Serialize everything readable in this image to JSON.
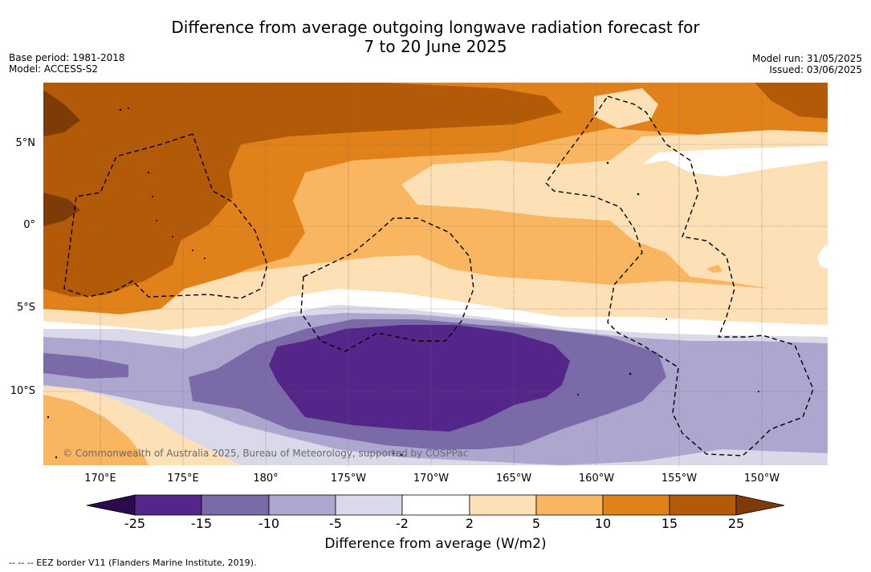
{
  "header": {
    "title_line1": "Difference from average outgoing longwave radiation forecast for",
    "title_line2": "7 to 20 June 2025",
    "base_period": "Base period: 1981-2018",
    "model": "Model: ACCESS-S2",
    "model_run": "Model run: 31/05/2025",
    "issued": "Issued: 03/06/2025"
  },
  "map": {
    "longitude_labels": [
      "170°E",
      "175°E",
      "180°",
      "175°W",
      "170°W",
      "165°W",
      "160°W",
      "155°W",
      "150°W"
    ],
    "latitude_labels": [
      "5°N",
      "0°",
      "5°S",
      "10°S"
    ],
    "credit": "© Commonwealth of Australia 2025, Bureau of Meteorology, supported by COSPPac"
  },
  "colorbar": {
    "tick_labels": [
      "-25",
      "-15",
      "-10",
      "-5",
      "-2",
      "2",
      "5",
      "10",
      "15",
      "25"
    ],
    "colors": [
      "#2d0a4e",
      "#54268a",
      "#7b6aa8",
      "#ada7d0",
      "#d9d9ea",
      "#ffffff",
      "#fde0b6",
      "#f9b560",
      "#e08219",
      "#b35a09",
      "#7e3b08"
    ],
    "title": "Difference from average (W/m2)"
  },
  "footer": {
    "legend": "--  --  -- EEZ border V11 (Flanders Marine Institute, 2019)."
  }
}
